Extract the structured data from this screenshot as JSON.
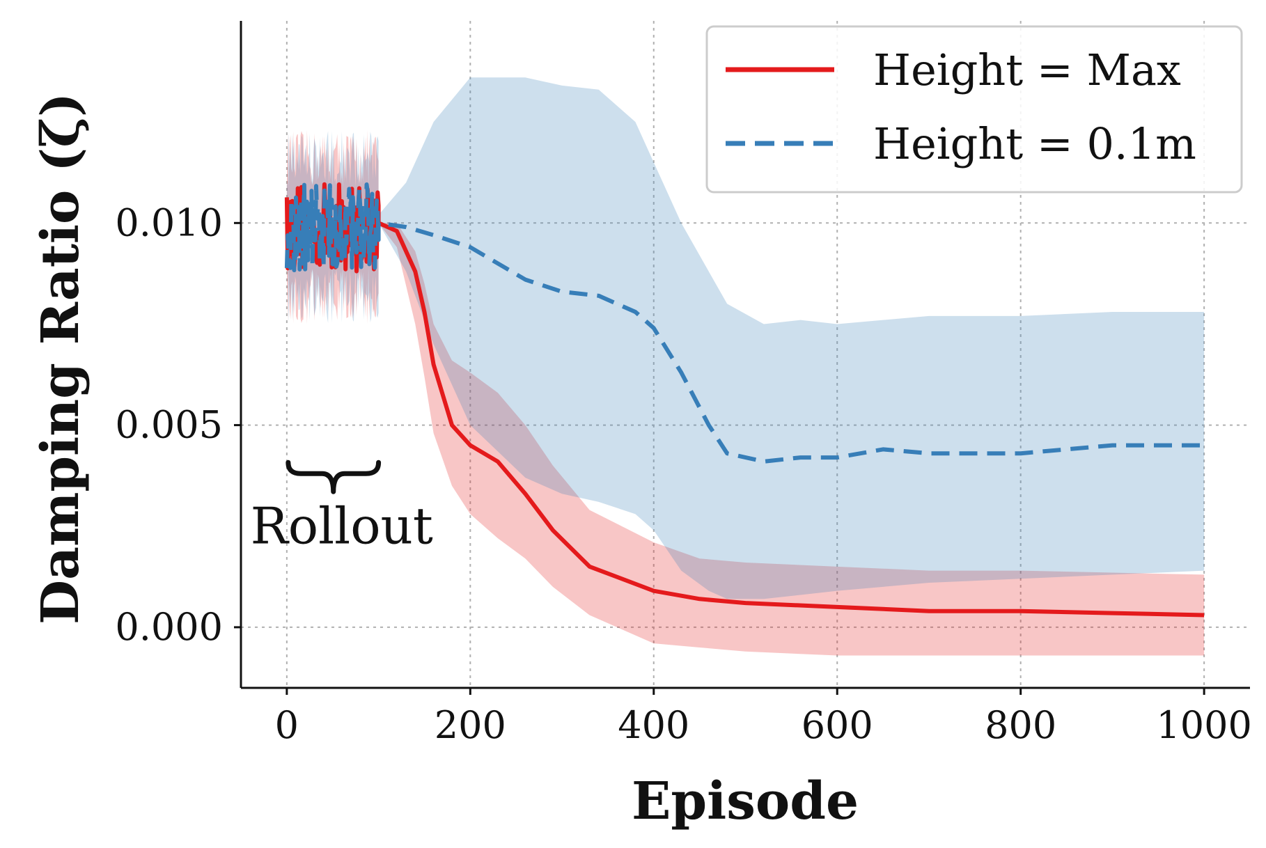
{
  "chart_data": {
    "type": "line",
    "xlabel": "Episode",
    "ylabel": "Damping Ratio (ζ)",
    "xlim": [
      -50,
      1050
    ],
    "ylim": [
      -0.0015,
      0.015
    ],
    "xticks": [
      0,
      200,
      400,
      600,
      800,
      1000
    ],
    "xtick_labels": [
      "0",
      "200",
      "400",
      "600",
      "800",
      "1000"
    ],
    "yticks": [
      0.0,
      0.005,
      0.01
    ],
    "ytick_labels": [
      "0.000",
      "0.005",
      "0.010"
    ],
    "grid": true,
    "legend_position": "top-right",
    "annotation": {
      "text": "Rollout",
      "x_range": [
        0,
        100
      ],
      "y": 0.0038
    },
    "rollout_range": [
      0,
      100
    ],
    "series": [
      {
        "name": "Height = Max",
        "color": "#e41a1c",
        "dash": "solid",
        "rollout_mean": 0.0099,
        "rollout_noise": 0.0005,
        "x": [
          100,
          120,
          140,
          150,
          160,
          180,
          200,
          230,
          260,
          290,
          330,
          400,
          450,
          500,
          600,
          700,
          800,
          900,
          1000
        ],
        "y": [
          0.01,
          0.0098,
          0.0088,
          0.0078,
          0.0065,
          0.005,
          0.0045,
          0.0041,
          0.0033,
          0.0024,
          0.0015,
          0.0009,
          0.0007,
          0.0006,
          0.0005,
          0.0004,
          0.0004,
          0.00035,
          0.0003
        ],
        "upper": [
          0.01,
          0.01,
          0.0093,
          0.0085,
          0.0075,
          0.0066,
          0.0063,
          0.0058,
          0.005,
          0.004,
          0.0029,
          0.0021,
          0.0017,
          0.0016,
          0.0015,
          0.0014,
          0.0014,
          0.00135,
          0.0013
        ],
        "lower": [
          0.01,
          0.0094,
          0.0075,
          0.0062,
          0.0048,
          0.0035,
          0.0028,
          0.0022,
          0.0017,
          0.001,
          0.0003,
          -0.0004,
          -0.0005,
          -0.0006,
          -0.0007,
          -0.0007,
          -0.0007,
          -0.0007,
          -0.0007
        ]
      },
      {
        "name": "Height = 0.1m",
        "color": "#377eb8",
        "dash": "dashed",
        "rollout_mean": 0.0099,
        "rollout_noise": 0.0005,
        "x": [
          100,
          130,
          160,
          200,
          260,
          300,
          340,
          380,
          400,
          430,
          460,
          480,
          520,
          560,
          600,
          650,
          700,
          800,
          900,
          1000
        ],
        "y": [
          0.01,
          0.0099,
          0.0097,
          0.0094,
          0.0086,
          0.0083,
          0.0082,
          0.0078,
          0.0074,
          0.0063,
          0.005,
          0.0043,
          0.0041,
          0.0042,
          0.0042,
          0.0044,
          0.0043,
          0.0043,
          0.0045,
          0.0045
        ],
        "upper": [
          0.0102,
          0.011,
          0.0125,
          0.0136,
          0.0136,
          0.0134,
          0.0133,
          0.0125,
          0.0115,
          0.01,
          0.0088,
          0.008,
          0.0075,
          0.0076,
          0.0075,
          0.0076,
          0.0077,
          0.0077,
          0.0078,
          0.0078
        ],
        "lower": [
          0.01,
          0.0088,
          0.007,
          0.005,
          0.0037,
          0.0033,
          0.0031,
          0.0028,
          0.0024,
          0.0014,
          0.0009,
          0.0007,
          0.0007,
          0.0008,
          0.0009,
          0.001,
          0.0011,
          0.0012,
          0.0013,
          0.0014
        ]
      }
    ]
  }
}
